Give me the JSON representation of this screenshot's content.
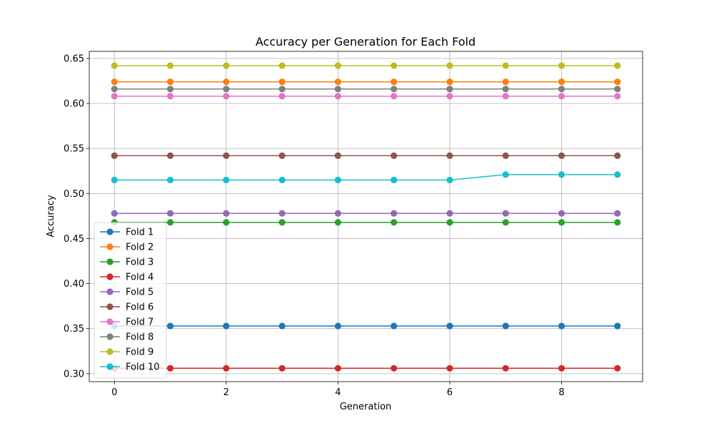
{
  "chart_data": {
    "type": "line",
    "title": "Accuracy per Generation for Each Fold",
    "xlabel": "Generation",
    "ylabel": "Accuracy",
    "xlim": [
      -0.45,
      9.45
    ],
    "ylim": [
      0.2912,
      0.6578
    ],
    "xticks": [
      0,
      2,
      4,
      6,
      8
    ],
    "yticks": [
      0.3,
      0.35,
      0.4,
      0.45,
      0.5,
      0.55,
      0.6,
      0.65
    ],
    "grid": true,
    "legend_position": "lower-left",
    "x": [
      0,
      1,
      2,
      3,
      4,
      5,
      6,
      7,
      8,
      9
    ],
    "series": [
      {
        "name": "Fold 1",
        "color": "#1f77b4",
        "values": [
          0.353,
          0.353,
          0.353,
          0.353,
          0.353,
          0.353,
          0.353,
          0.353,
          0.353,
          0.353
        ]
      },
      {
        "name": "Fold 2",
        "color": "#ff7f0e",
        "values": [
          0.624,
          0.624,
          0.624,
          0.624,
          0.624,
          0.624,
          0.624,
          0.624,
          0.624,
          0.624
        ]
      },
      {
        "name": "Fold 3",
        "color": "#2ca02c",
        "values": [
          0.468,
          0.468,
          0.468,
          0.468,
          0.468,
          0.468,
          0.468,
          0.468,
          0.468,
          0.468
        ]
      },
      {
        "name": "Fold 4",
        "color": "#d62728",
        "values": [
          0.306,
          0.306,
          0.306,
          0.306,
          0.306,
          0.306,
          0.306,
          0.306,
          0.306,
          0.306
        ]
      },
      {
        "name": "Fold 5",
        "color": "#9467bd",
        "values": [
          0.478,
          0.478,
          0.478,
          0.478,
          0.478,
          0.478,
          0.478,
          0.478,
          0.478,
          0.478
        ]
      },
      {
        "name": "Fold 6",
        "color": "#8c564b",
        "values": [
          0.542,
          0.542,
          0.542,
          0.542,
          0.542,
          0.542,
          0.542,
          0.542,
          0.542,
          0.542
        ]
      },
      {
        "name": "Fold 7",
        "color": "#e377c2",
        "values": [
          0.608,
          0.608,
          0.608,
          0.608,
          0.608,
          0.608,
          0.608,
          0.608,
          0.608,
          0.608
        ]
      },
      {
        "name": "Fold 8",
        "color": "#7f7f7f",
        "values": [
          0.616,
          0.616,
          0.616,
          0.616,
          0.616,
          0.616,
          0.616,
          0.616,
          0.616,
          0.616
        ]
      },
      {
        "name": "Fold 9",
        "color": "#bcbd22",
        "values": [
          0.642,
          0.642,
          0.642,
          0.642,
          0.642,
          0.642,
          0.642,
          0.642,
          0.642,
          0.642
        ]
      },
      {
        "name": "Fold 10",
        "color": "#17becf",
        "values": [
          0.515,
          0.515,
          0.515,
          0.515,
          0.515,
          0.515,
          0.515,
          0.521,
          0.521,
          0.521
        ]
      }
    ]
  }
}
